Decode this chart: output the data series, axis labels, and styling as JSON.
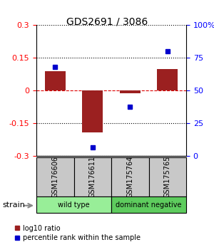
{
  "title": "GDS2691 / 3086",
  "samples": [
    "GSM176606",
    "GSM176611",
    "GSM175764",
    "GSM175765"
  ],
  "log10_ratio": [
    0.09,
    -0.19,
    -0.01,
    0.1
  ],
  "percentile_rank": [
    68,
    7,
    38,
    80
  ],
  "ylim_left": [
    -0.3,
    0.3
  ],
  "ylim_right": [
    0,
    100
  ],
  "yticks_left": [
    -0.3,
    -0.15,
    0,
    0.15,
    0.3
  ],
  "ytick_labels_left": [
    "-0.3",
    "-0.15",
    "0",
    "0.15",
    "0.3"
  ],
  "yticks_right": [
    0,
    25,
    50,
    75,
    100
  ],
  "ytick_labels_right": [
    "0",
    "25",
    "50",
    "75",
    "100%"
  ],
  "bar_color": "#9B2020",
  "dot_color": "#0000CC",
  "hline_color": "#DD0000",
  "label_log10": "log10 ratio",
  "label_pct": "percentile rank within the sample",
  "wt_color": "#98EE98",
  "dn_color": "#5ECC5E",
  "sample_box_color": "#C8C8C8",
  "group_labels": [
    "wild type",
    "dominant negative"
  ]
}
